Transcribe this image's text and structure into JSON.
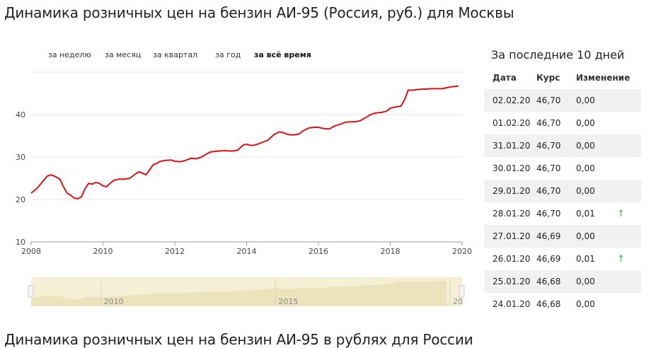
{
  "page": {
    "title": "Динамика розничных цен на бензин АИ-95 (Россия, руб.) для Москвы",
    "next_section_title": "Динамика розничных цен на бензин АИ-95 в рублях для России"
  },
  "periods": [
    {
      "label": "за неделю",
      "active": false
    },
    {
      "label": "за месяц",
      "active": false
    },
    {
      "label": "за квартал",
      "active": false
    },
    {
      "label": "за год",
      "active": false
    },
    {
      "label": "за всё время",
      "active": true
    }
  ],
  "chart_data": {
    "type": "line",
    "title": "",
    "xlabel": "",
    "ylabel": "",
    "xlim": [
      2008.0,
      2020.0
    ],
    "ylim": [
      10,
      50
    ],
    "x_ticks": [
      "2008",
      "2010",
      "2012",
      "2014",
      "2016",
      "2018",
      "2020"
    ],
    "y_ticks": [
      "10",
      "20",
      "30",
      "40"
    ],
    "grid": true,
    "legend": "none",
    "colors": {
      "line": "#dd1111",
      "grid": "#e6e6e6"
    },
    "series": [
      {
        "x": [
          2008.0,
          2008.15,
          2008.3,
          2008.45,
          2008.55,
          2008.65,
          2008.8,
          2008.9,
          2009.0,
          2009.1,
          2009.2,
          2009.3,
          2009.4,
          2009.5,
          2009.6,
          2009.7,
          2009.8,
          2009.9,
          2010.0,
          2010.1,
          2010.2,
          2010.3,
          2010.45,
          2010.6,
          2010.75,
          2010.9,
          2011.0,
          2011.1,
          2011.2,
          2011.3,
          2011.4,
          2011.5,
          2011.6,
          2011.75,
          2011.9,
          2012.0,
          2012.15,
          2012.3,
          2012.45,
          2012.6,
          2012.75,
          2012.9,
          2013.0,
          2013.2,
          2013.4,
          2013.6,
          2013.75,
          2013.9,
          2014.0,
          2014.15,
          2014.3,
          2014.45,
          2014.6,
          2014.75,
          2014.9,
          2015.0,
          2015.15,
          2015.3,
          2015.45,
          2015.6,
          2015.75,
          2015.9,
          2016.0,
          2016.15,
          2016.3,
          2016.45,
          2016.6,
          2016.75,
          2016.9,
          2017.0,
          2017.15,
          2017.3,
          2017.45,
          2017.6,
          2017.75,
          2017.9,
          2018.0,
          2018.15,
          2018.3,
          2018.4,
          2018.5,
          2018.6,
          2018.75,
          2018.9,
          2019.0,
          2019.15,
          2019.3,
          2019.45,
          2019.6,
          2019.75,
          2019.9
        ],
        "y": [
          21.5,
          22.5,
          24.0,
          25.5,
          25.8,
          25.5,
          24.8,
          23.0,
          21.5,
          21.0,
          20.3,
          20.2,
          20.6,
          22.5,
          23.8,
          23.6,
          24.0,
          23.8,
          23.2,
          23.0,
          23.8,
          24.5,
          24.8,
          24.8,
          25.0,
          26.0,
          26.5,
          26.2,
          25.8,
          27.0,
          28.2,
          28.5,
          29.0,
          29.2,
          29.3,
          29.0,
          28.9,
          29.2,
          29.7,
          29.6,
          30.0,
          30.8,
          31.2,
          31.4,
          31.5,
          31.4,
          31.6,
          32.8,
          33.0,
          32.7,
          33.0,
          33.5,
          34.0,
          35.2,
          35.9,
          35.8,
          35.3,
          35.2,
          35.4,
          36.3,
          36.9,
          37.0,
          37.0,
          36.7,
          36.6,
          37.3,
          37.7,
          38.2,
          38.3,
          38.3,
          38.5,
          39.2,
          40.0,
          40.4,
          40.5,
          40.8,
          41.5,
          41.8,
          42.0,
          43.5,
          45.8,
          45.7,
          45.9,
          46.0,
          46.0,
          46.1,
          46.1,
          46.1,
          46.4,
          46.6,
          46.7
        ]
      }
    ],
    "navigator": {
      "x_labels": [
        "2010",
        "2015",
        "20"
      ],
      "colors": {
        "background": "#f5f0d5",
        "fill": "#ece2bc",
        "handle": "#cccccc"
      }
    }
  },
  "table": {
    "title": "За последние 10 дней",
    "columns": [
      "Дата",
      "Курс",
      "Изменение"
    ],
    "rows": [
      {
        "date": "02.02.20",
        "rate": "46,70",
        "change": "0,00",
        "arrow": ""
      },
      {
        "date": "01.02.20",
        "rate": "46,70",
        "change": "0,00",
        "arrow": ""
      },
      {
        "date": "31.01.20",
        "rate": "46,70",
        "change": "0,00",
        "arrow": ""
      },
      {
        "date": "30.01.20",
        "rate": "46,70",
        "change": "0,00",
        "arrow": ""
      },
      {
        "date": "29.01.20",
        "rate": "46,70",
        "change": "0,00",
        "arrow": ""
      },
      {
        "date": "28.01.20",
        "rate": "46,70",
        "change": "0,01",
        "arrow": "↑"
      },
      {
        "date": "27.01.20",
        "rate": "46,69",
        "change": "0,00",
        "arrow": ""
      },
      {
        "date": "26.01.20",
        "rate": "46,69",
        "change": "0,01",
        "arrow": "↑"
      },
      {
        "date": "25.01.20",
        "rate": "46,68",
        "change": "0,00",
        "arrow": ""
      },
      {
        "date": "24.01.20",
        "rate": "46,68",
        "change": "0,00",
        "arrow": ""
      }
    ]
  }
}
